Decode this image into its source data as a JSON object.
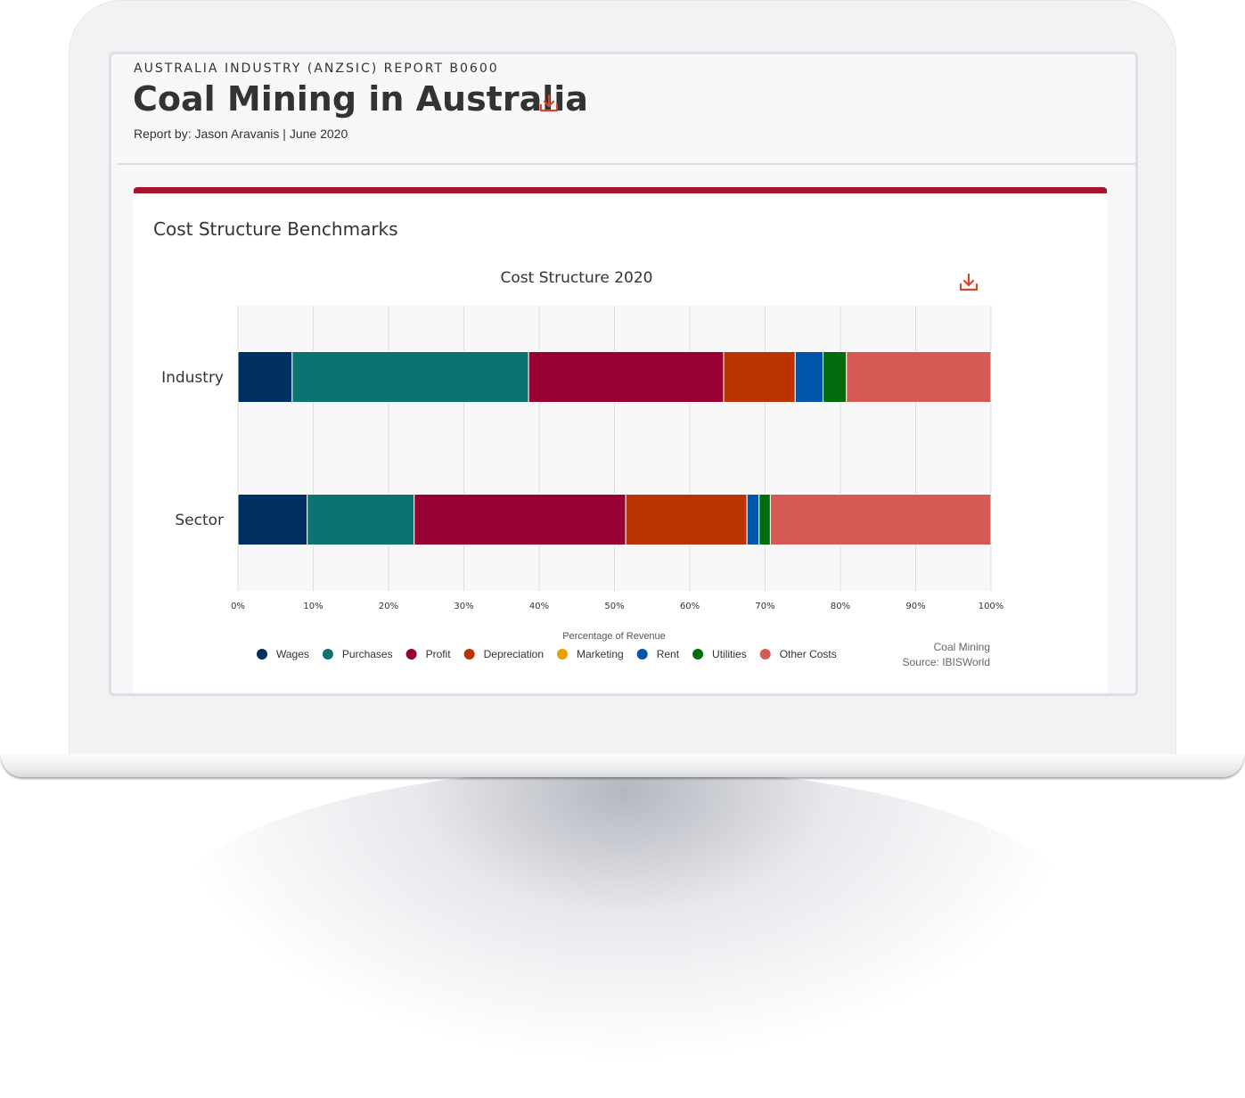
{
  "report": {
    "code": "AUSTRALIA INDUSTRY (ANZSIC) REPORT B0600",
    "title": "Coal Mining in Australia",
    "byline": "Report by: Jason Aravanis  | June 2020"
  },
  "card": {
    "title": "Cost Structure Benchmarks"
  },
  "icons": {
    "download": "download-icon",
    "legend_marker": "circle-marker"
  },
  "colors": {
    "accent_bar": "#a6142d",
    "download_icon": "#d9442f"
  },
  "chart_data": {
    "type": "bar",
    "orientation": "horizontal",
    "stacked": true,
    "title": "Cost Structure 2020",
    "xlabel": "Percentage of Revenue",
    "xlim": [
      0,
      100
    ],
    "xticks": [
      "0%",
      "10%",
      "20%",
      "30%",
      "40%",
      "50%",
      "60%",
      "70%",
      "80%",
      "90%",
      "100%"
    ],
    "categories": [
      "Industry",
      "Sector"
    ],
    "series": [
      {
        "name": "Wages",
        "color": "#002f63",
        "values": [
          7.2,
          9.2
        ]
      },
      {
        "name": "Purchases",
        "color": "#0c7370",
        "values": [
          31.4,
          14.2
        ]
      },
      {
        "name": "Profit",
        "color": "#970030",
        "values": [
          25.9,
          28.1
        ]
      },
      {
        "name": "Depreciation",
        "color": "#bb3400",
        "values": [
          9.5,
          16.1
        ]
      },
      {
        "name": "Marketing",
        "color": "#e8a000",
        "values": [
          0,
          0
        ]
      },
      {
        "name": "Rent",
        "color": "#0055aa",
        "values": [
          3.7,
          1.6
        ]
      },
      {
        "name": "Utilities",
        "color": "#046a0e",
        "values": [
          3.1,
          1.5
        ]
      },
      {
        "name": "Other Costs",
        "color": "#d55a55",
        "values": [
          19.2,
          29.3
        ]
      }
    ],
    "grid": true,
    "legend_position": "bottom",
    "source_lines": [
      "Coal Mining",
      "Source: IBISWorld"
    ]
  }
}
